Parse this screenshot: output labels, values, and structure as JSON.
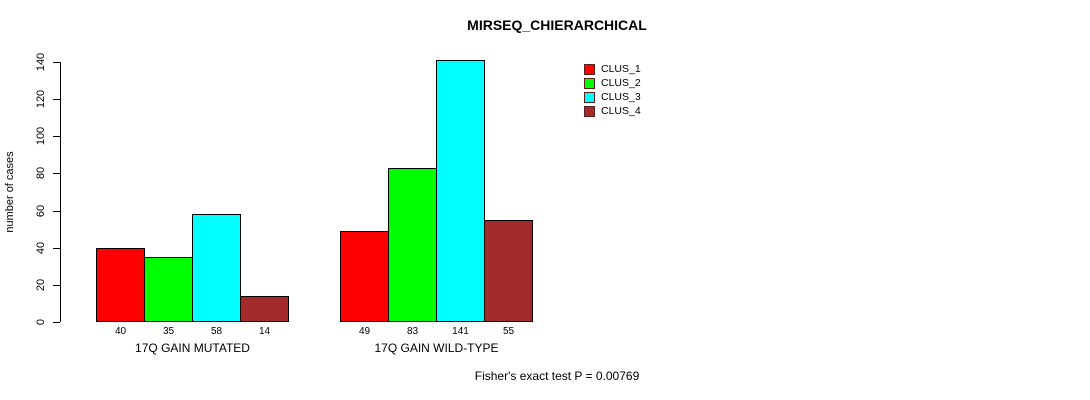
{
  "chart_data": {
    "type": "bar",
    "title": "MIRSEQ_CHIERARCHICAL",
    "xlabel": "",
    "ylabel": "number of cases",
    "categories": [
      "17Q GAIN MUTATED",
      "17Q GAIN WILD-TYPE"
    ],
    "series": [
      {
        "name": "CLUS_1",
        "color": "#ff0000",
        "values": [
          40,
          49
        ]
      },
      {
        "name": "CLUS_2",
        "color": "#00ff00",
        "values": [
          35,
          83
        ]
      },
      {
        "name": "CLUS_3",
        "color": "#00ffff",
        "values": [
          58,
          141
        ]
      },
      {
        "name": "CLUS_4",
        "color": "#a52a2a",
        "values": [
          14,
          55
        ]
      }
    ],
    "yticks": [
      0,
      20,
      40,
      60,
      80,
      100,
      120,
      140
    ],
    "ylim": [
      0,
      140
    ],
    "grid": false,
    "bar_value_labels_shown": true,
    "legend_position": "top-right",
    "legend_entries": [
      "CLUS_1",
      "CLUS_2",
      "CLUS_3",
      "CLUS_4"
    ],
    "annotation": "Fisher's exact test P = 0.00769"
  }
}
